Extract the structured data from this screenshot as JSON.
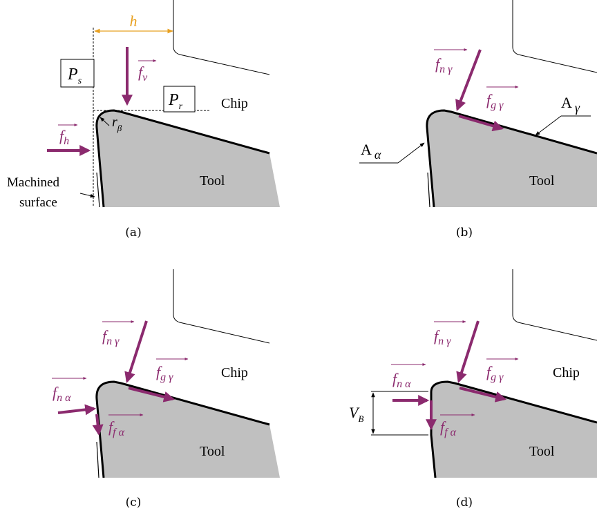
{
  "colors": {
    "force": "#8B2A6E",
    "dimension_h": "#E8A020",
    "tool_fill": "#C0C0C0",
    "outline": "#000000"
  },
  "labels": {
    "chip": "Chip",
    "tool": "Tool",
    "machined_surface_line1": "Machined",
    "machined_surface_line2": "surface",
    "h": "h",
    "Ps": "P",
    "Ps_sub": "s",
    "Pr": "P",
    "Pr_sub": "r",
    "r_beta": "r",
    "r_beta_sub": "β",
    "A_alpha": "A",
    "A_alpha_sub": "α",
    "A_gamma": "A",
    "A_gamma_sub": "γ",
    "VB": "V",
    "VB_sub": "B"
  },
  "forces": {
    "fv": "f",
    "fv_sub": "v",
    "fh": "f",
    "fh_sub": "h",
    "fng": "f",
    "fng_sub": "n γ",
    "fgg": "f",
    "fgg_sub": "g γ",
    "fna": "f",
    "fna_sub": "n α",
    "ffa": "f",
    "ffa_sub": "f α"
  },
  "captions": [
    "(a)",
    "(b)",
    "(c)",
    "(d)"
  ]
}
